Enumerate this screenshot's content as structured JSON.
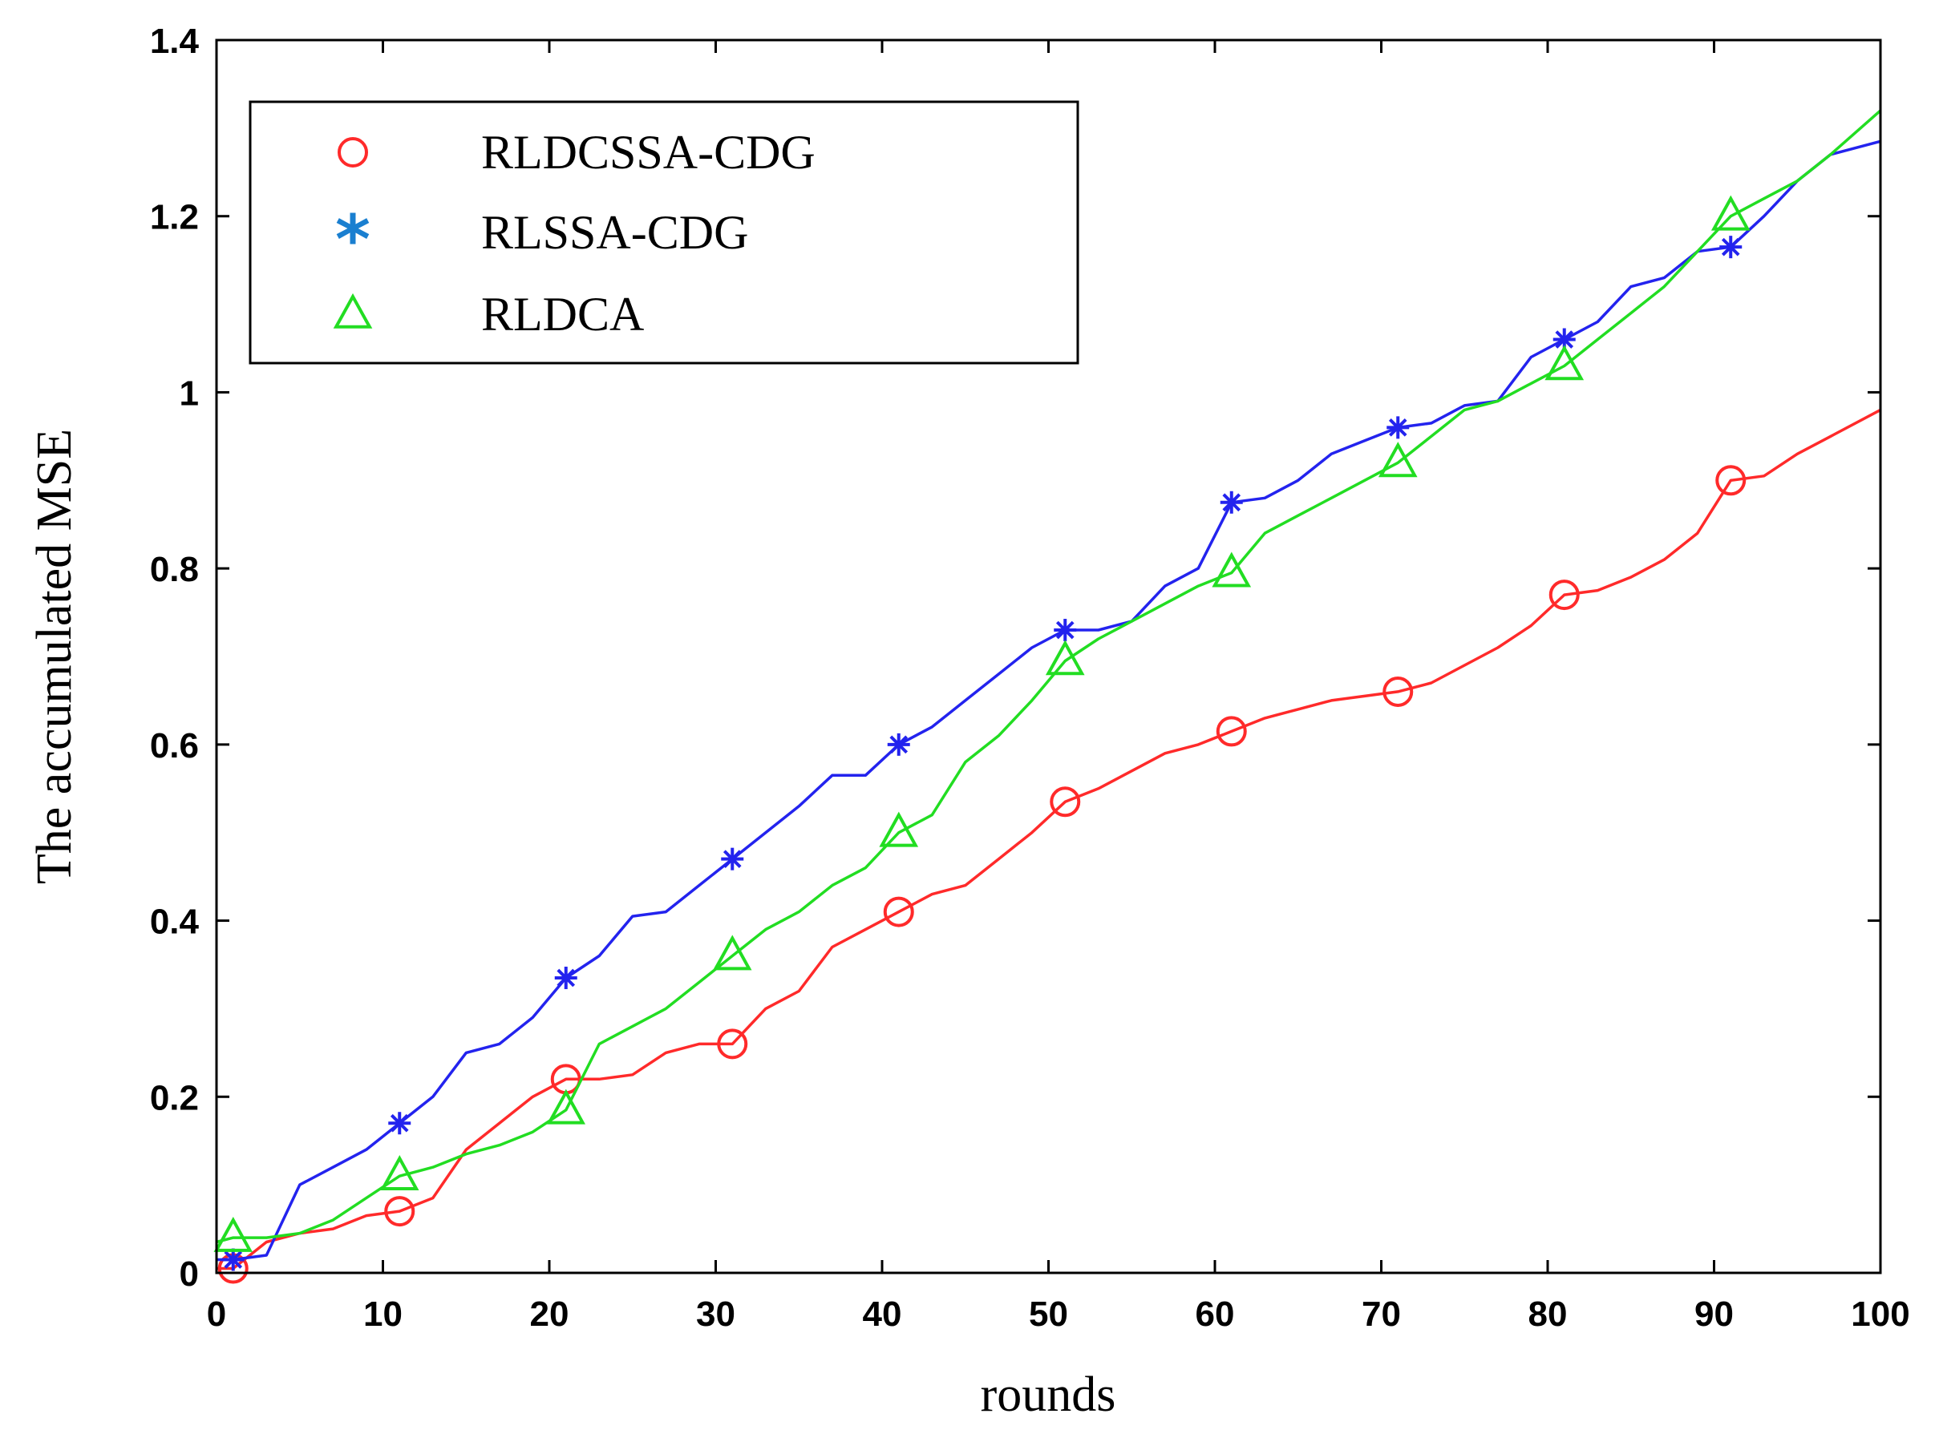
{
  "chart_data": {
    "type": "line",
    "title": "",
    "xlabel": "rounds",
    "ylabel": "The accumulated MSE",
    "xlim": [
      0,
      100
    ],
    "ylim": [
      0,
      1.4
    ],
    "xticks": [
      0,
      10,
      20,
      30,
      40,
      50,
      60,
      70,
      80,
      90,
      100
    ],
    "yticks": [
      0,
      0.2,
      0.4,
      0.6,
      0.8,
      1,
      1.2,
      1.4
    ],
    "xtick_labels": [
      "0",
      "10",
      "20",
      "30",
      "40",
      "50",
      "60",
      "70",
      "80",
      "90",
      "100"
    ],
    "ytick_labels": [
      "0",
      "0.2",
      "0.4",
      "0.6",
      "0.8",
      "1",
      "1.2",
      "1.4"
    ],
    "grid": false,
    "legend_position": "top-left",
    "series": [
      {
        "name": "RLDCSSA-CDG",
        "color": "#ff2a2a",
        "marker": "circle",
        "marker_x": [
          1,
          11,
          21,
          31,
          41,
          51,
          61,
          71,
          81,
          91
        ],
        "x": [
          0,
          1,
          3,
          5,
          7,
          9,
          11,
          13,
          15,
          17,
          19,
          21,
          23,
          25,
          27,
          29,
          31,
          33,
          35,
          37,
          39,
          41,
          43,
          45,
          47,
          49,
          51,
          53,
          55,
          57,
          59,
          61,
          63,
          65,
          67,
          69,
          71,
          73,
          75,
          77,
          79,
          81,
          83,
          85,
          87,
          89,
          91,
          93,
          95,
          97,
          100
        ],
        "y": [
          0.005,
          0.005,
          0.035,
          0.045,
          0.05,
          0.065,
          0.07,
          0.085,
          0.14,
          0.17,
          0.2,
          0.22,
          0.22,
          0.225,
          0.25,
          0.26,
          0.26,
          0.3,
          0.32,
          0.37,
          0.39,
          0.41,
          0.43,
          0.44,
          0.47,
          0.5,
          0.535,
          0.55,
          0.57,
          0.59,
          0.6,
          0.615,
          0.63,
          0.64,
          0.65,
          0.655,
          0.66,
          0.67,
          0.69,
          0.71,
          0.735,
          0.77,
          0.775,
          0.79,
          0.81,
          0.84,
          0.9,
          0.905,
          0.93,
          0.95,
          0.98
        ]
      },
      {
        "name": "RLSSA-CDG",
        "color": "#2323ee",
        "marker": "asterisk",
        "marker_x": [
          1,
          11,
          21,
          31,
          41,
          51,
          61,
          71,
          81,
          91
        ],
        "x": [
          0,
          1,
          3,
          5,
          7,
          9,
          11,
          13,
          15,
          17,
          19,
          21,
          23,
          25,
          27,
          29,
          31,
          33,
          35,
          37,
          39,
          41,
          43,
          45,
          47,
          49,
          51,
          53,
          55,
          57,
          59,
          61,
          63,
          65,
          67,
          69,
          71,
          73,
          75,
          77,
          79,
          81,
          83,
          85,
          87,
          89,
          91,
          93,
          95,
          97,
          100
        ],
        "y": [
          0.015,
          0.015,
          0.02,
          0.1,
          0.12,
          0.14,
          0.17,
          0.2,
          0.25,
          0.26,
          0.29,
          0.335,
          0.36,
          0.405,
          0.41,
          0.44,
          0.47,
          0.5,
          0.53,
          0.565,
          0.565,
          0.6,
          0.62,
          0.65,
          0.68,
          0.71,
          0.73,
          0.73,
          0.74,
          0.78,
          0.8,
          0.875,
          0.88,
          0.9,
          0.93,
          0.945,
          0.96,
          0.965,
          0.985,
          0.99,
          1.04,
          1.06,
          1.08,
          1.12,
          1.13,
          1.16,
          1.165,
          1.2,
          1.24,
          1.27,
          1.285
        ]
      },
      {
        "name": "RLDCA",
        "color": "#22dd22",
        "marker": "triangle",
        "marker_x": [
          1,
          11,
          21,
          31,
          41,
          51,
          61,
          71,
          81,
          91
        ],
        "x": [
          0,
          1,
          3,
          5,
          7,
          9,
          11,
          13,
          15,
          17,
          19,
          21,
          23,
          25,
          27,
          29,
          31,
          33,
          35,
          37,
          39,
          41,
          43,
          45,
          47,
          49,
          51,
          53,
          55,
          57,
          59,
          61,
          63,
          65,
          67,
          69,
          71,
          73,
          75,
          77,
          79,
          81,
          83,
          85,
          87,
          89,
          91,
          93,
          95,
          97,
          100
        ],
        "y": [
          0.035,
          0.04,
          0.04,
          0.045,
          0.06,
          0.085,
          0.11,
          0.12,
          0.135,
          0.145,
          0.16,
          0.185,
          0.26,
          0.28,
          0.3,
          0.33,
          0.36,
          0.39,
          0.41,
          0.44,
          0.46,
          0.5,
          0.52,
          0.58,
          0.61,
          0.65,
          0.695,
          0.72,
          0.74,
          0.76,
          0.78,
          0.795,
          0.84,
          0.86,
          0.88,
          0.9,
          0.92,
          0.95,
          0.98,
          0.99,
          1.01,
          1.03,
          1.06,
          1.09,
          1.12,
          1.16,
          1.2,
          1.22,
          1.24,
          1.27,
          1.32
        ]
      }
    ]
  }
}
